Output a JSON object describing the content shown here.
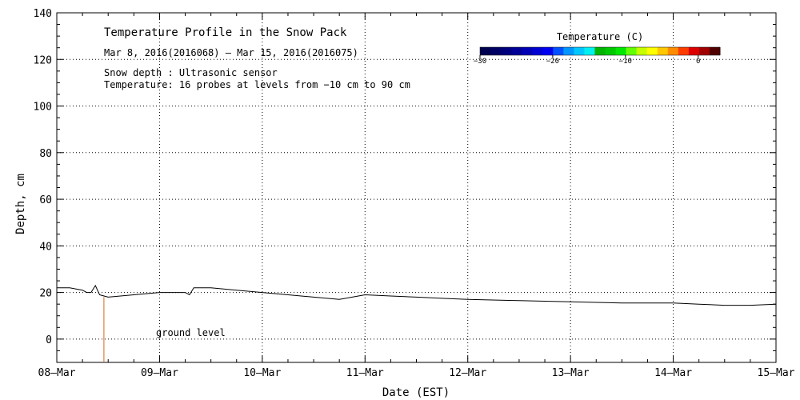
{
  "chart_data": {
    "type": "line",
    "title": "Temperature Profile in the Snow Pack",
    "subtitle": "Mar  8, 2016(2016068) – Mar 15, 2016(2016075)",
    "notes": [
      "Snow depth : Ultrasonic sensor",
      "Temperature: 16 probes at levels from −10 cm to 90 cm"
    ],
    "xlabel": "Date (EST)",
    "ylabel": "Depth, cm",
    "xlim": [
      "2016-03-08",
      "2016-03-15"
    ],
    "ylim": [
      -10,
      140
    ],
    "x_tick_labels": [
      "08–Mar",
      "09–Mar",
      "10–Mar",
      "11–Mar",
      "12–Mar",
      "13–Mar",
      "14–Mar",
      "15–Mar"
    ],
    "y_ticks": [
      0,
      20,
      40,
      60,
      80,
      100,
      120,
      140
    ],
    "grid": true,
    "annotation": "ground level",
    "colorbar": {
      "title": "Temperature (C)",
      "tick_labels": [
        "−30",
        "−20",
        "−10",
        "0"
      ],
      "ticks": [
        -30,
        -20,
        -10,
        0
      ],
      "range": [
        -30,
        3
      ],
      "colors": [
        "#000050",
        "#000064",
        "#00007d",
        "#000096",
        "#0000b4",
        "#0000d2",
        "#0000f0",
        "#0050ff",
        "#0096ff",
        "#00c8ff",
        "#00f0f0",
        "#00b400",
        "#00c800",
        "#00e600",
        "#64ff00",
        "#c8ff00",
        "#ffff00",
        "#ffc800",
        "#ff8c00",
        "#ff3c00",
        "#dc0000",
        "#a00000",
        "#500000"
      ]
    },
    "series": [
      {
        "color": "#000000",
        "points": [
          [
            "2016-03-08 00:00",
            22
          ],
          [
            "2016-03-08 03:00",
            22
          ],
          [
            "2016-03-08 06:00",
            21
          ],
          [
            "2016-03-08 07:00",
            20
          ],
          [
            "2016-03-08 08:00",
            20
          ],
          [
            "2016-03-08 09:00",
            23
          ],
          [
            "2016-03-08 10:00",
            19
          ],
          [
            "2016-03-08 12:00",
            18
          ],
          [
            "2016-03-08 18:00",
            19
          ],
          [
            "2016-03-09 00:00",
            20
          ],
          [
            "2016-03-09 06:00",
            20
          ],
          [
            "2016-03-09 07:00",
            19
          ],
          [
            "2016-03-09 08:00",
            22
          ],
          [
            "2016-03-09 12:00",
            22
          ],
          [
            "2016-03-09 18:00",
            21
          ],
          [
            "2016-03-10 00:00",
            20
          ],
          [
            "2016-03-10 06:00",
            19
          ],
          [
            "2016-03-10 12:00",
            18
          ],
          [
            "2016-03-10 18:00",
            17
          ],
          [
            "2016-03-11 00:00",
            19
          ],
          [
            "2016-03-11 06:00",
            18.5
          ],
          [
            "2016-03-11 12:00",
            18
          ],
          [
            "2016-03-11 18:00",
            17.5
          ],
          [
            "2016-03-12 00:00",
            17
          ],
          [
            "2016-03-12 12:00",
            16.5
          ],
          [
            "2016-03-13 00:00",
            16
          ],
          [
            "2016-03-13 12:00",
            15.5
          ],
          [
            "2016-03-14 00:00",
            15.5
          ],
          [
            "2016-03-14 06:00",
            15
          ],
          [
            "2016-03-14 12:00",
            14.5
          ],
          [
            "2016-03-14 18:00",
            14.5
          ],
          [
            "2016-03-15 00:00",
            15
          ]
        ]
      },
      {
        "color": "#d2691e",
        "points": [
          [
            "2016-03-08 11:00",
            -10
          ],
          [
            "2016-03-08 11:00",
            18
          ]
        ]
      }
    ]
  }
}
